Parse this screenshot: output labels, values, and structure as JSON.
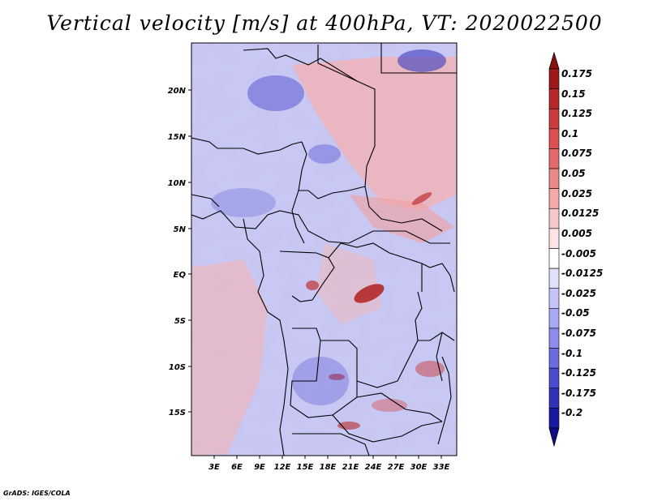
{
  "title": "Vertical velocity [m/s] at 400hPa, VT: 2020022500",
  "axes": {
    "lon_ticks": [
      "3E",
      "6E",
      "9E",
      "12E",
      "15E",
      "18E",
      "21E",
      "24E",
      "27E",
      "30E",
      "33E"
    ],
    "lat_ticks": [
      "20N",
      "15N",
      "10N",
      "5N",
      "EQ",
      "5S",
      "10S",
      "15S"
    ]
  },
  "colorbar": {
    "labels": [
      "0.175",
      "0.15",
      "0.125",
      "0.1",
      "0.075",
      "0.05",
      "0.025",
      "0.0125",
      "0.005",
      "-0.005",
      "-0.0125",
      "-0.025",
      "-0.05",
      "-0.075",
      "-0.1",
      "-0.125",
      "-0.175",
      "-0.2"
    ],
    "colors": [
      "#a01818",
      "#b82828",
      "#cc3c3c",
      "#dc5050",
      "#e46a6a",
      "#ec8888",
      "#f4a8a8",
      "#f8c8c8",
      "#fce4e4",
      "#ffffff",
      "#e0e0fc",
      "#c4c4f8",
      "#a8a8f4",
      "#8c8cec",
      "#6c6ce0",
      "#4c4cd0",
      "#3030b8",
      "#1818a0"
    ],
    "upper_arrow_color": "#8c1010",
    "lower_arrow_color": "#100c88"
  },
  "credit": "GrADS: IGES/COLA"
}
